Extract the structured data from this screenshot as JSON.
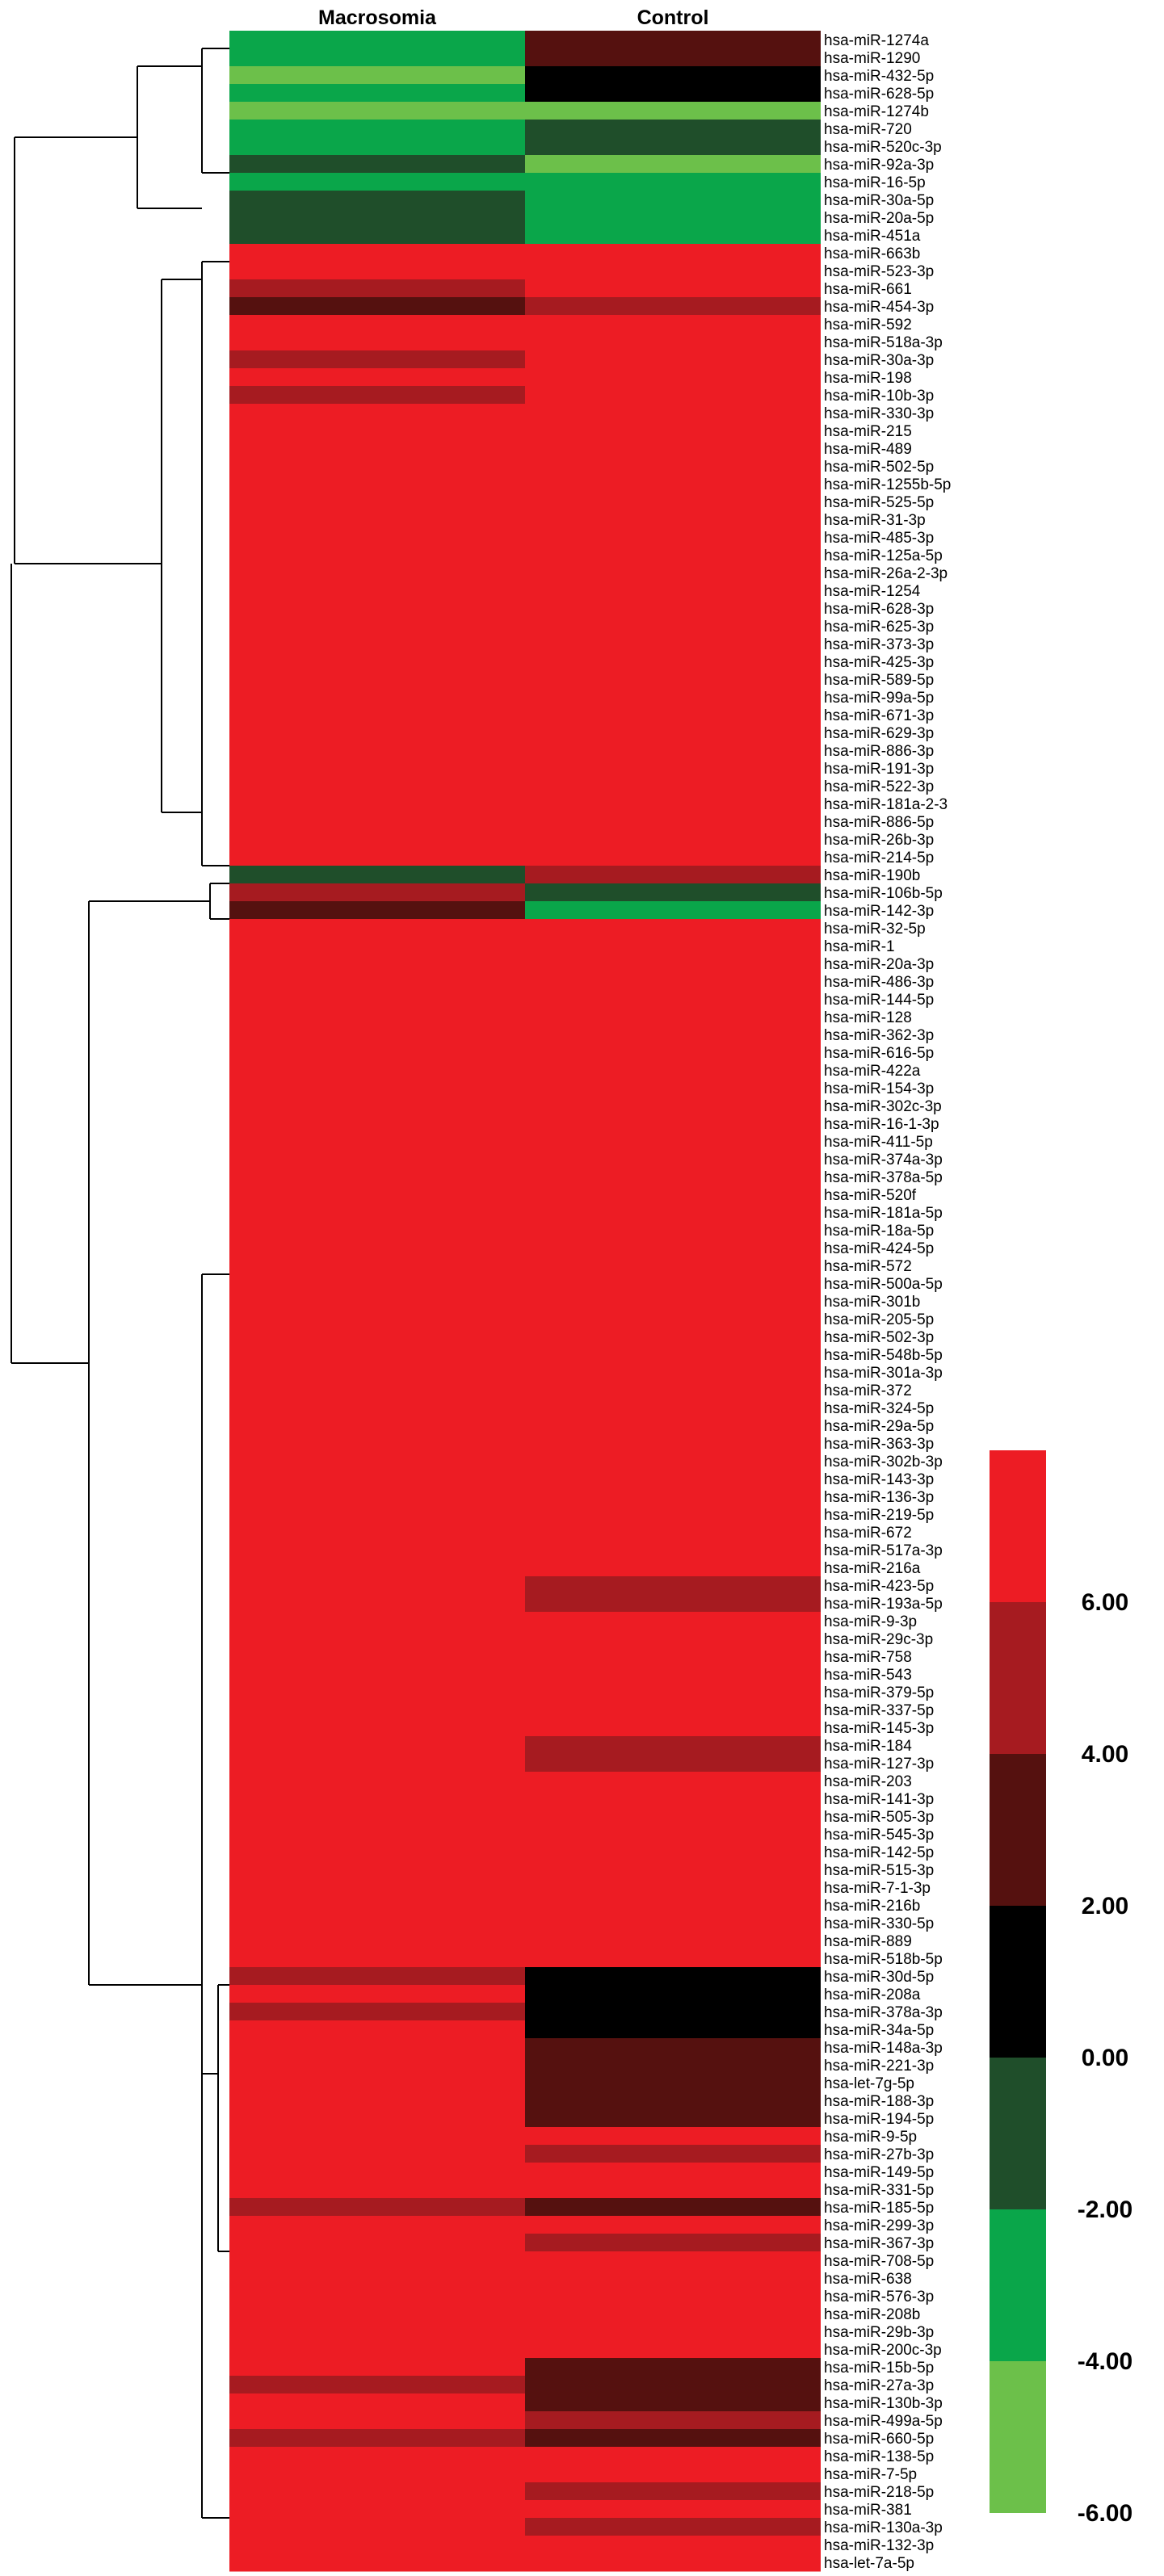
{
  "chart_data": {
    "type": "heatmap",
    "columns": [
      "Macrosomia",
      "Control"
    ],
    "rows": [
      "hsa-miR-1274a",
      "hsa-miR-1290",
      "hsa-miR-432-5p",
      "hsa-miR-628-5p",
      "hsa-miR-1274b",
      "hsa-miR-720",
      "hsa-miR-520c-3p",
      "hsa-miR-92a-3p",
      "hsa-miR-16-5p",
      "hsa-miR-30a-5p",
      "hsa-miR-20a-5p",
      "hsa-miR-451a",
      "hsa-miR-663b",
      "hsa-miR-523-3p",
      "hsa-miR-661",
      "hsa-miR-454-3p",
      "hsa-miR-592",
      "hsa-miR-518a-3p",
      "hsa-miR-30a-3p",
      "hsa-miR-198",
      "hsa-miR-10b-3p",
      "hsa-miR-330-3p",
      "hsa-miR-215",
      "hsa-miR-489",
      "hsa-miR-502-5p",
      "hsa-miR-1255b-5p",
      "hsa-miR-525-5p",
      "hsa-miR-31-3p",
      "hsa-miR-485-3p",
      "hsa-miR-125a-5p",
      "hsa-miR-26a-2-3p",
      "hsa-miR-1254",
      "hsa-miR-628-3p",
      "hsa-miR-625-3p",
      "hsa-miR-373-3p",
      "hsa-miR-425-3p",
      "hsa-miR-589-5p",
      "hsa-miR-99a-5p",
      "hsa-miR-671-3p",
      "hsa-miR-629-3p",
      "hsa-miR-886-3p",
      "hsa-miR-191-3p",
      "hsa-miR-522-3p",
      "hsa-miR-181a-2-3",
      "hsa-miR-886-5p",
      "hsa-miR-26b-3p",
      "hsa-miR-214-5p",
      "hsa-miR-190b",
      "hsa-miR-106b-5p",
      "hsa-miR-142-3p",
      "hsa-miR-32-5p",
      "hsa-miR-1",
      "hsa-miR-20a-3p",
      "hsa-miR-486-3p",
      "hsa-miR-144-5p",
      "hsa-miR-128",
      "hsa-miR-362-3p",
      "hsa-miR-616-5p",
      "hsa-miR-422a",
      "hsa-miR-154-3p",
      "hsa-miR-302c-3p",
      "hsa-miR-16-1-3p",
      "hsa-miR-411-5p",
      "hsa-miR-374a-3p",
      "hsa-miR-378a-5p",
      "hsa-miR-520f",
      "hsa-miR-181a-5p",
      "hsa-miR-18a-5p",
      "hsa-miR-424-5p",
      "hsa-miR-572",
      "hsa-miR-500a-5p",
      "hsa-miR-301b",
      "hsa-miR-205-5p",
      "hsa-miR-502-3p",
      "hsa-miR-548b-5p",
      "hsa-miR-301a-3p",
      "hsa-miR-372",
      "hsa-miR-324-5p",
      "hsa-miR-29a-5p",
      "hsa-miR-363-3p",
      "hsa-miR-302b-3p",
      "hsa-miR-143-3p",
      "hsa-miR-136-3p",
      "hsa-miR-219-5p",
      "hsa-miR-672",
      "hsa-miR-517a-3p",
      "hsa-miR-216a",
      "hsa-miR-423-5p",
      "hsa-miR-193a-5p",
      "hsa-miR-9-3p",
      "hsa-miR-29c-3p",
      "hsa-miR-758",
      "hsa-miR-543",
      "hsa-miR-379-5p",
      "hsa-miR-337-5p",
      "hsa-miR-145-3p",
      "hsa-miR-184",
      "hsa-miR-127-3p",
      "hsa-miR-203",
      "hsa-miR-141-3p",
      "hsa-miR-505-3p",
      "hsa-miR-545-3p",
      "hsa-miR-142-5p",
      "hsa-miR-515-3p",
      "hsa-miR-7-1-3p",
      "hsa-miR-216b",
      "hsa-miR-330-5p",
      "hsa-miR-889",
      "hsa-miR-518b-5p",
      "hsa-miR-30d-5p",
      "hsa-miR-208a",
      "hsa-miR-378a-3p",
      "hsa-miR-34a-5p",
      "hsa-miR-148a-3p",
      "hsa-miR-221-3p",
      "hsa-let-7g-5p",
      "hsa-miR-188-3p",
      "hsa-miR-194-5p",
      "hsa-miR-9-5p",
      "hsa-miR-27b-3p",
      "hsa-miR-149-5p",
      "hsa-miR-331-5p",
      "hsa-miR-185-5p",
      "hsa-miR-299-3p",
      "hsa-miR-367-3p",
      "hsa-miR-708-5p",
      "hsa-miR-638",
      "hsa-miR-576-3p",
      "hsa-miR-208b",
      "hsa-miR-29b-3p",
      "hsa-miR-200c-3p",
      "hsa-miR-15b-5p",
      "hsa-miR-27a-3p",
      "hsa-miR-130b-3p",
      "hsa-miR-499a-5p",
      "hsa-miR-660-5p",
      "hsa-miR-138-5p",
      "hsa-miR-7-5p",
      "hsa-miR-218-5p",
      "hsa-miR-381",
      "hsa-miR-130a-3p",
      "hsa-miR-132-3p",
      "hsa-let-7a-5p"
    ],
    "values": [
      [
        -4.2,
        1.8
      ],
      [
        -3.6,
        1.5
      ],
      [
        -5.2,
        0.5
      ],
      [
        -4.6,
        0.6
      ],
      [
        -6.0,
        -6.0
      ],
      [
        -4.6,
        -1.8
      ],
      [
        -4.2,
        -1.6
      ],
      [
        -1.8,
        -5.2
      ],
      [
        -3.4,
        -4.6
      ],
      [
        -1.4,
        -4.2
      ],
      [
        -1.6,
        -4.4
      ],
      [
        -1.2,
        -3.8
      ],
      [
        5.0,
        7.0
      ],
      [
        5.0,
        7.0
      ],
      [
        3.0,
        7.0
      ],
      [
        1.0,
        4.5
      ],
      [
        7.0,
        7.0
      ],
      [
        7.0,
        7.0
      ],
      [
        4.5,
        7.0
      ],
      [
        7.0,
        7.0
      ],
      [
        3.5,
        5.5
      ],
      [
        7.0,
        7.0
      ],
      [
        7.0,
        7.0
      ],
      [
        7.0,
        7.0
      ],
      [
        7.0,
        7.0
      ],
      [
        7.0,
        7.0
      ],
      [
        7.0,
        7.0
      ],
      [
        7.0,
        7.0
      ],
      [
        7.0,
        7.0
      ],
      [
        5.5,
        7.0
      ],
      [
        7.0,
        7.0
      ],
      [
        7.0,
        7.0
      ],
      [
        7.0,
        7.0
      ],
      [
        5.5,
        7.0
      ],
      [
        7.0,
        7.0
      ],
      [
        6.0,
        7.0
      ],
      [
        7.0,
        7.0
      ],
      [
        6.5,
        7.0
      ],
      [
        7.0,
        7.0
      ],
      [
        7.0,
        7.0
      ],
      [
        6.5,
        7.0
      ],
      [
        7.0,
        7.0
      ],
      [
        7.0,
        7.0
      ],
      [
        7.0,
        7.0
      ],
      [
        7.0,
        7.0
      ],
      [
        7.0,
        7.0
      ],
      [
        7.0,
        7.0
      ],
      [
        -1.4,
        3.5
      ],
      [
        3.0,
        -1.4
      ],
      [
        2.5,
        -3.6
      ],
      [
        7.0,
        7.0
      ],
      [
        7.0,
        7.0
      ],
      [
        7.0,
        7.0
      ],
      [
        7.0,
        7.0
      ],
      [
        7.0,
        7.0
      ],
      [
        7.0,
        7.0
      ],
      [
        7.0,
        7.0
      ],
      [
        7.0,
        7.0
      ],
      [
        7.0,
        7.0
      ],
      [
        7.0,
        7.0
      ],
      [
        7.0,
        6.0
      ],
      [
        7.0,
        7.0
      ],
      [
        7.0,
        7.0
      ],
      [
        7.0,
        7.0
      ],
      [
        7.0,
        7.0
      ],
      [
        7.0,
        7.0
      ],
      [
        7.0,
        5.8
      ],
      [
        7.0,
        7.0
      ],
      [
        7.0,
        7.0
      ],
      [
        7.0,
        6.0
      ],
      [
        7.0,
        7.0
      ],
      [
        7.0,
        7.0
      ],
      [
        7.0,
        5.0
      ],
      [
        7.0,
        7.0
      ],
      [
        7.0,
        7.0
      ],
      [
        7.0,
        6.0
      ],
      [
        7.0,
        7.0
      ],
      [
        7.0,
        6.0
      ],
      [
        7.0,
        7.0
      ],
      [
        7.0,
        7.0
      ],
      [
        7.0,
        5.0
      ],
      [
        7.0,
        6.0
      ],
      [
        7.0,
        7.0
      ],
      [
        7.0,
        7.0
      ],
      [
        7.0,
        7.0
      ],
      [
        7.0,
        6.0
      ],
      [
        7.0,
        7.0
      ],
      [
        6.5,
        4.0
      ],
      [
        7.0,
        4.5
      ],
      [
        7.0,
        5.8
      ],
      [
        7.0,
        7.0
      ],
      [
        7.0,
        7.0
      ],
      [
        7.0,
        7.0
      ],
      [
        7.0,
        7.0
      ],
      [
        7.0,
        7.0
      ],
      [
        7.0,
        7.0
      ],
      [
        7.0,
        4.0
      ],
      [
        7.0,
        4.0
      ],
      [
        7.0,
        7.0
      ],
      [
        7.0,
        7.0
      ],
      [
        7.0,
        7.0
      ],
      [
        7.0,
        7.0
      ],
      [
        7.0,
        6.0
      ],
      [
        7.0,
        7.0
      ],
      [
        7.0,
        7.0
      ],
      [
        7.0,
        7.0
      ],
      [
        7.0,
        7.0
      ],
      [
        7.0,
        7.0
      ],
      [
        7.0,
        7.0
      ],
      [
        3.5,
        0.5
      ],
      [
        7.0,
        0.6
      ],
      [
        3.8,
        -0.8
      ],
      [
        7.0,
        -0.9
      ],
      [
        5.0,
        1.5
      ],
      [
        5.0,
        1.8
      ],
      [
        7.0,
        2.5
      ],
      [
        5.5,
        2.0
      ],
      [
        5.0,
        2.0
      ],
      [
        7.0,
        7.0
      ],
      [
        7.0,
        3.5
      ],
      [
        7.0,
        7.0
      ],
      [
        7.0,
        7.0
      ],
      [
        4.0,
        1.8
      ],
      [
        7.0,
        7.0
      ],
      [
        7.0,
        4.5
      ],
      [
        7.0,
        7.0
      ],
      [
        7.0,
        7.0
      ],
      [
        7.0,
        7.0
      ],
      [
        7.0,
        7.0
      ],
      [
        7.0,
        7.0
      ],
      [
        7.0,
        7.0
      ],
      [
        6.0,
        1.2
      ],
      [
        3.5,
        1.5
      ],
      [
        7.0,
        2.6
      ],
      [
        7.0,
        3.0
      ],
      [
        4.5,
        1.8
      ],
      [
        7.0,
        6.0
      ],
      [
        7.0,
        6.0
      ],
      [
        7.0,
        3.5
      ],
      [
        7.0,
        6.0
      ],
      [
        7.0,
        3.0
      ],
      [
        7.0,
        5.0
      ],
      [
        7.0,
        5.0
      ]
    ],
    "color_scale": {
      "bands": [
        {
          "from": 5,
          "to": 7,
          "color": "#ed1c24"
        },
        {
          "from": 3,
          "to": 5,
          "color": "#a61b20"
        },
        {
          "from": 1,
          "to": 3,
          "color": "#55110f"
        },
        {
          "from": -1,
          "to": 1,
          "color": "#000000"
        },
        {
          "from": -3,
          "to": -1,
          "color": "#1f4e2a"
        },
        {
          "from": -5,
          "to": -3,
          "color": "#0aa64a"
        },
        {
          "from": -7,
          "to": -5,
          "color": "#6cc04a"
        }
      ],
      "tick_labels": [
        "6.00",
        "4.00",
        "2.00",
        "0.00",
        "-2.00",
        "-4.00",
        "-6.00"
      ]
    },
    "dendrogram": true,
    "legend_position": "right"
  }
}
